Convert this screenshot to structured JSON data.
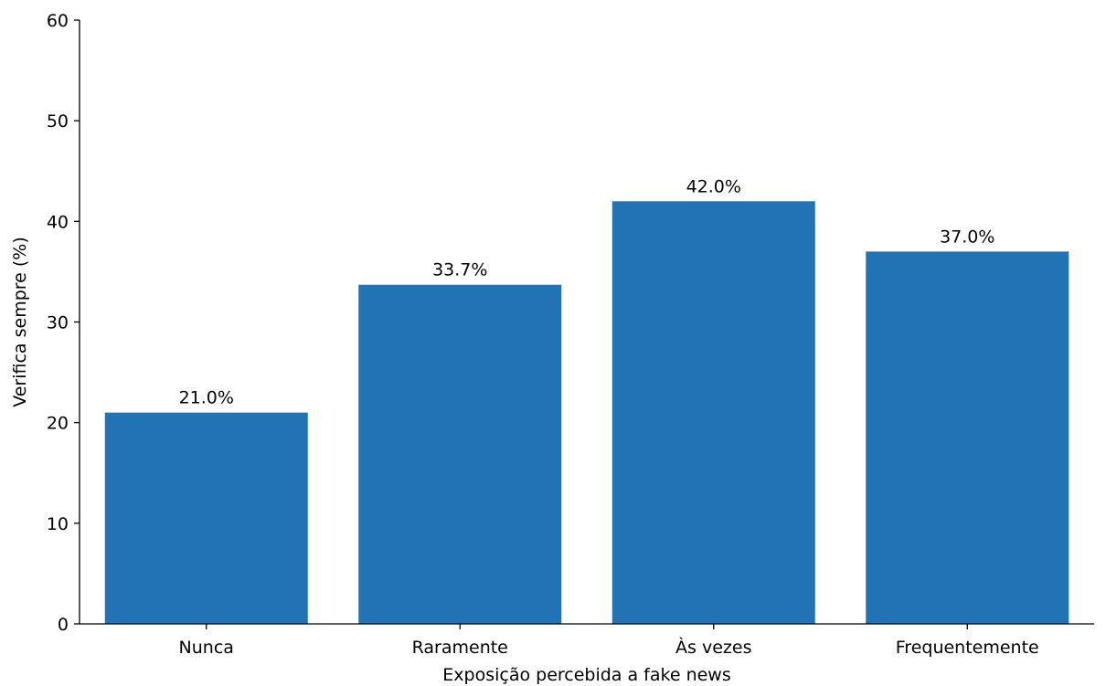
{
  "chart_data": {
    "type": "bar",
    "title": "",
    "xlabel": "Exposição percebida a fake news",
    "ylabel": "Verifica sempre (%)",
    "categories": [
      "Nunca",
      "Raramente",
      "Às vezes",
      "Frequentemente"
    ],
    "values": [
      21.0,
      33.7,
      42.0,
      37.0
    ],
    "data_labels": [
      "21.0%",
      "33.7%",
      "42.0%",
      "37.0%"
    ],
    "ylim": [
      0,
      60
    ],
    "yticks": [
      0,
      10,
      20,
      30,
      40,
      50,
      60
    ],
    "grid": false,
    "legend": "none",
    "colors": {
      "bar": "#2273b5",
      "axis": "#000000"
    }
  }
}
